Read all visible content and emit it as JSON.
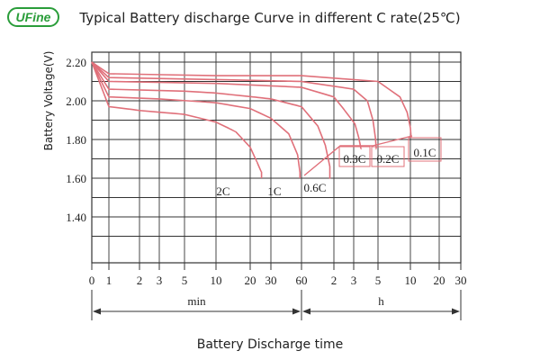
{
  "brand": {
    "logo_text": "UFine"
  },
  "colors": {
    "curve": "#e0707a",
    "grid": "#333333",
    "text": "#222222",
    "logo": "#2a9d3a"
  },
  "chart_data": {
    "type": "line",
    "title": "Typical Battery discharge Curve in different C rate(25℃)",
    "xlabel": "Battery Discharge time",
    "ylabel": "Battery Voltage(V)",
    "ylim": [
      1.3,
      2.25
    ],
    "y_ticks": [
      "2.20",
      "2.00",
      "1.80",
      "1.60",
      "1.40"
    ],
    "x_ticks": [
      "0",
      "1",
      "2",
      "3",
      "5",
      "10",
      "20",
      "30",
      "60",
      "2",
      "3",
      "5",
      "10",
      "20",
      "30"
    ],
    "x_unit_labels": [
      "min",
      "h"
    ],
    "grid": true,
    "series": [
      {
        "name": "2C",
        "x": [
          0,
          1,
          2,
          5,
          10,
          15,
          20,
          23,
          25,
          25
        ],
        "y": [
          2.2,
          1.97,
          1.95,
          1.93,
          1.89,
          1.84,
          1.76,
          1.68,
          1.63,
          1.6
        ]
      },
      {
        "name": "1C",
        "x": [
          0,
          1,
          3,
          10,
          20,
          30,
          45,
          55,
          58,
          58
        ],
        "y": [
          2.2,
          2.02,
          2.01,
          1.99,
          1.96,
          1.91,
          1.83,
          1.72,
          1.63,
          1.6
        ]
      },
      {
        "name": "0.6C",
        "x": [
          0,
          1,
          5,
          10,
          30,
          60,
          85,
          100,
          110,
          110
        ],
        "y": [
          2.2,
          2.06,
          2.05,
          2.04,
          2.01,
          1.97,
          1.87,
          1.77,
          1.66,
          1.6
        ]
      },
      {
        "name": "0.3C",
        "x": [
          0,
          1,
          10,
          60,
          120,
          150,
          185,
          200,
          210
        ],
        "y": [
          2.2,
          2.1,
          2.09,
          2.07,
          2.02,
          1.95,
          1.88,
          1.81,
          1.75
        ]
      },
      {
        "name": "0.2C",
        "x": [
          0,
          1,
          10,
          60,
          180,
          240,
          270,
          285,
          290
        ],
        "y": [
          2.2,
          2.12,
          2.11,
          2.1,
          2.06,
          2.0,
          1.9,
          1.8,
          1.75
        ]
      },
      {
        "name": "0.1C",
        "x": [
          0,
          1,
          10,
          60,
          300,
          480,
          560,
          600,
          610
        ],
        "y": [
          2.2,
          2.14,
          2.13,
          2.13,
          2.1,
          2.02,
          1.94,
          1.86,
          1.81
        ]
      }
    ]
  }
}
